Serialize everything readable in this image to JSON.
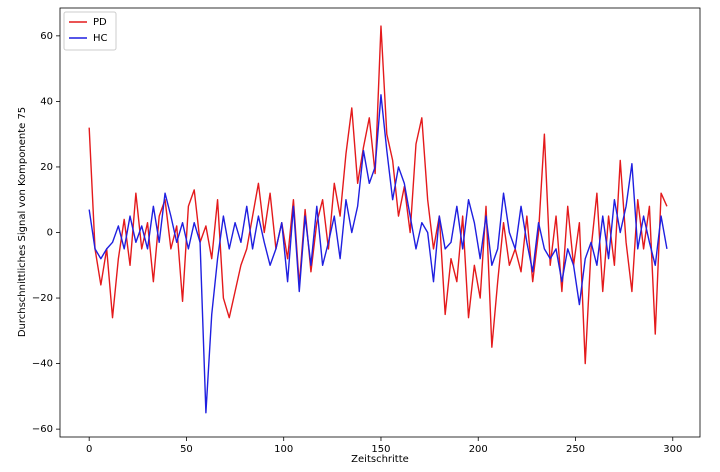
{
  "chart_data": {
    "type": "line",
    "xlabel": "Zeitschritte",
    "ylabel": "Durchschnittliches Signal von Komponente 75",
    "x": [
      0,
      3,
      6,
      9,
      12,
      15,
      18,
      21,
      24,
      27,
      30,
      33,
      36,
      39,
      42,
      45,
      48,
      51,
      54,
      57,
      60,
      63,
      66,
      69,
      72,
      75,
      78,
      81,
      84,
      87,
      90,
      93,
      96,
      99,
      102,
      105,
      108,
      111,
      114,
      117,
      120,
      123,
      126,
      129,
      132,
      135,
      138,
      141,
      144,
      147,
      150,
      153,
      156,
      159,
      162,
      165,
      168,
      171,
      174,
      177,
      180,
      183,
      186,
      189,
      192,
      195,
      198,
      201,
      204,
      207,
      210,
      213,
      216,
      219,
      222,
      225,
      228,
      231,
      234,
      237,
      240,
      243,
      246,
      249,
      252,
      255,
      258,
      261,
      264,
      267,
      270,
      273,
      276,
      279,
      282,
      285,
      288,
      291,
      294,
      297
    ],
    "series": [
      {
        "name": "PD",
        "color": "#e41a1c",
        "values": [
          32,
          -5,
          -16,
          -5,
          -26,
          -8,
          4,
          -10,
          12,
          -5,
          3,
          -15,
          5,
          10,
          -5,
          2,
          -21,
          8,
          13,
          -3,
          2,
          -8,
          10,
          -20,
          -26,
          -18,
          -10,
          -5,
          5,
          15,
          0,
          12,
          -5,
          3,
          -8,
          10,
          -16,
          7,
          -12,
          3,
          10,
          -5,
          15,
          5,
          24,
          38,
          15,
          26,
          35,
          18,
          63,
          30,
          22,
          5,
          14,
          0,
          27,
          35,
          10,
          -5,
          5,
          -25,
          -8,
          -15,
          5,
          -26,
          -10,
          -20,
          8,
          -35,
          -15,
          3,
          -10,
          -5,
          -12,
          5,
          -15,
          0,
          30,
          -10,
          5,
          -18,
          8,
          -10,
          3,
          -40,
          -5,
          12,
          -18,
          5,
          -10,
          22,
          -3,
          -18,
          10,
          -5,
          8,
          -31,
          12,
          8
        ]
      },
      {
        "name": "HC",
        "color": "#1f1fe0",
        "values": [
          7,
          -5,
          -8,
          -5,
          -3,
          2,
          -5,
          5,
          -3,
          2,
          -5,
          8,
          -3,
          12,
          5,
          -3,
          3,
          -5,
          3,
          -3,
          -55,
          -25,
          -8,
          5,
          -5,
          3,
          -3,
          8,
          -5,
          5,
          -3,
          -10,
          -5,
          3,
          -15,
          8,
          -18,
          5,
          -10,
          8,
          -10,
          -3,
          5,
          -8,
          10,
          0,
          8,
          25,
          15,
          20,
          42,
          25,
          10,
          20,
          15,
          5,
          -5,
          3,
          0,
          -15,
          5,
          -5,
          -3,
          8,
          -5,
          10,
          3,
          -8,
          5,
          -10,
          -5,
          12,
          0,
          -5,
          8,
          -3,
          -12,
          3,
          -5,
          -8,
          -5,
          -15,
          -5,
          -10,
          -22,
          -8,
          -3,
          -10,
          5,
          -8,
          10,
          0,
          8,
          21,
          -5,
          5,
          -3,
          -10,
          5,
          -5
        ]
      }
    ],
    "xlim": [
      -15,
      314
    ],
    "ylim": [
      -62.4,
      68.5
    ],
    "xticks": [
      0,
      50,
      100,
      150,
      200,
      250,
      300
    ],
    "yticks": [
      {
        "value": -60,
        "label": "−60"
      },
      {
        "value": -40,
        "label": "−40"
      },
      {
        "value": -20,
        "label": "−20"
      },
      0,
      20,
      40,
      60
    ],
    "legend": "upper left"
  }
}
